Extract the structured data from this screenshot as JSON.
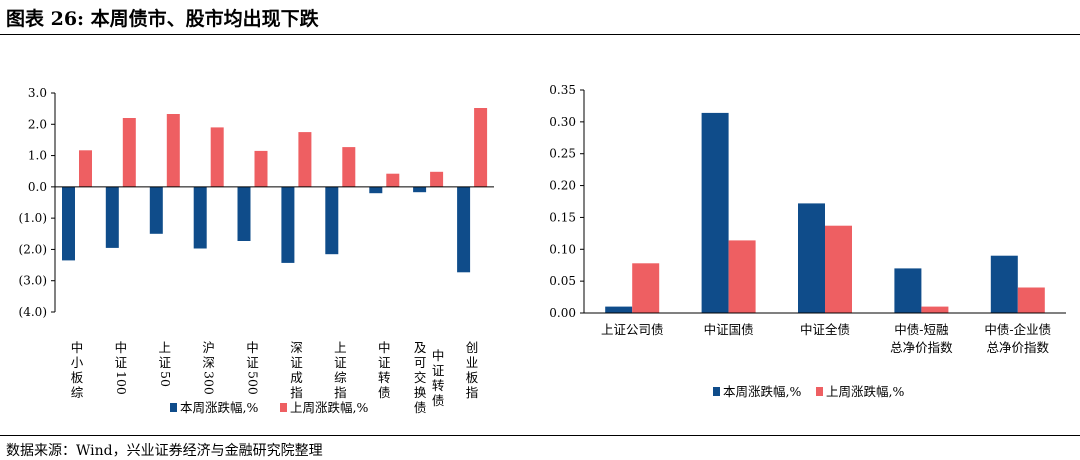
{
  "header": {
    "title": "图表 26:  本周债市、股市均出现下跌"
  },
  "footer": {
    "source": "数据来源：Wind，兴业证券经济与金融研究院整理"
  },
  "colors": {
    "this_week": "#0f4c8a",
    "last_week": "#ee5f62"
  },
  "chart_data": [
    {
      "type": "bar",
      "categories": [
        "中小板综",
        "中证100",
        "上证50",
        "沪深300",
        "中证500",
        "深证成指",
        "上证综指",
        "中证转债",
        "及可交换债中证转债",
        "创业板指"
      ],
      "category_lines": [
        [
          "中",
          "小",
          "板",
          "综"
        ],
        [
          "中",
          "证",
          "100"
        ],
        [
          "上",
          "证",
          "50"
        ],
        [
          "沪",
          "深",
          "300"
        ],
        [
          "中",
          "证",
          "500"
        ],
        [
          "深",
          "证",
          "成",
          "指"
        ],
        [
          "上",
          "证",
          "综",
          "指"
        ],
        [
          "中",
          "证",
          "转",
          "债"
        ],
        [
          "及",
          "可",
          "交",
          "换",
          "债"
        ],
        [
          "创",
          "业",
          "板",
          "指"
        ]
      ],
      "category_extra_column": {
        "index": 8,
        "chars": [
          "中",
          "证",
          "转",
          "债"
        ]
      },
      "series": [
        {
          "name": "本周涨跌幅,%",
          "values": [
            -2.35,
            -1.95,
            -1.5,
            -1.97,
            -1.73,
            -2.43,
            -2.15,
            -0.2,
            -0.17,
            -2.73
          ]
        },
        {
          "name": "上周涨跌幅,%",
          "values": [
            1.17,
            2.2,
            2.33,
            1.9,
            1.15,
            1.75,
            1.27,
            0.42,
            0.48,
            2.52
          ]
        }
      ],
      "ylim": [
        -4.0,
        3.0
      ],
      "yticks": [
        3.0,
        2.0,
        1.0,
        0.0,
        -1.0,
        -2.0,
        -3.0,
        -4.0
      ],
      "ytick_labels": [
        "3.0",
        "2.0",
        "1.0",
        "0.0",
        "(1.0)",
        "(2.0)",
        "(3.0)",
        "(4.0)"
      ],
      "legend_position": "bottom"
    },
    {
      "type": "bar",
      "categories": [
        "上证公司债",
        "中证国债",
        "中证全债",
        "中债-短融总净价指数",
        "中债-企业债总净价指数"
      ],
      "category_lines": [
        [
          "上证公司债"
        ],
        [
          "中证国债"
        ],
        [
          "中证全债"
        ],
        [
          "中债-短融",
          "总净价指数"
        ],
        [
          "中债-企业债",
          "总净价指数"
        ]
      ],
      "series": [
        {
          "name": "本周涨跌幅,%",
          "values": [
            0.01,
            0.314,
            0.172,
            0.07,
            0.09
          ]
        },
        {
          "name": "上周涨跌幅,%",
          "values": [
            0.078,
            0.114,
            0.137,
            0.01,
            0.04
          ]
        }
      ],
      "ylim": [
        0.0,
        0.35
      ],
      "yticks": [
        0.35,
        0.3,
        0.25,
        0.2,
        0.15,
        0.1,
        0.05,
        0.0
      ],
      "ytick_labels": [
        "0.35",
        "0.30",
        "0.25",
        "0.20",
        "0.15",
        "0.10",
        "0.05",
        "0.00"
      ],
      "legend_position": "bottom"
    }
  ]
}
